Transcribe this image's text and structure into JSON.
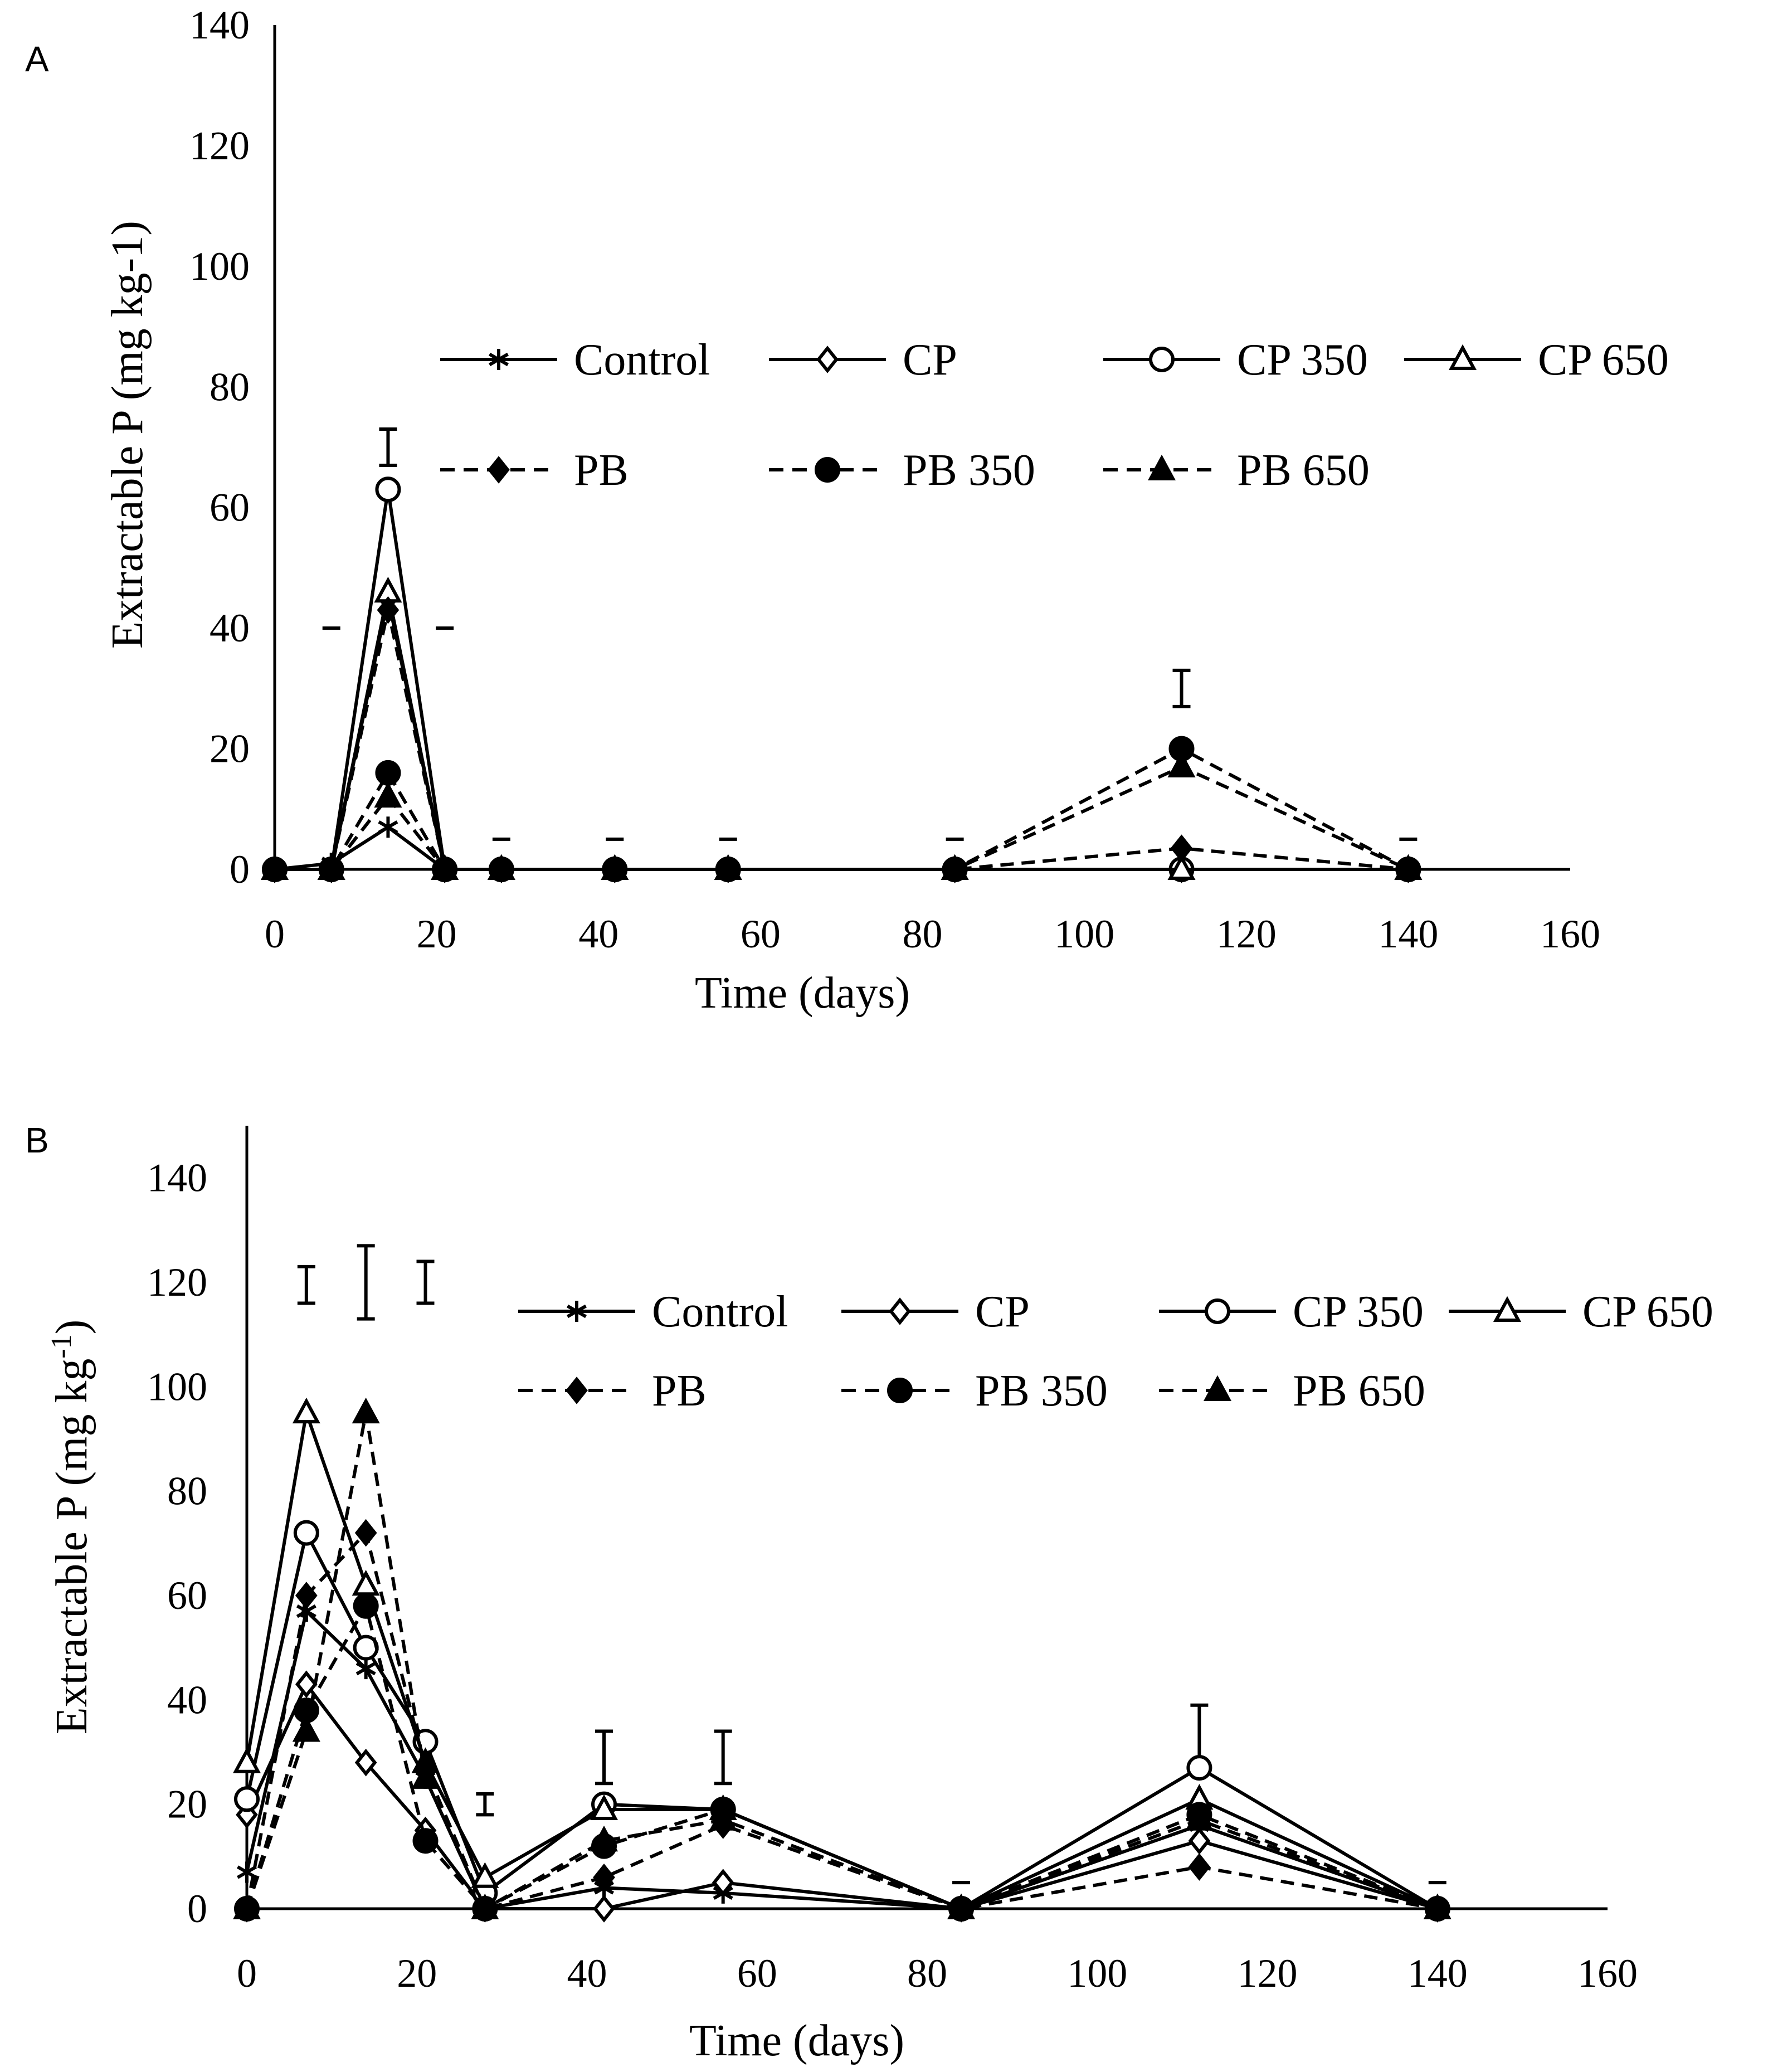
{
  "chart_data": [
    {
      "type": "line",
      "panel_label": "A",
      "xlabel": "Time (days)",
      "ylabel": "Extractable P (mg kg-1)",
      "ylabel_sup": "",
      "xlim": [
        0,
        160
      ],
      "ylim": [
        0,
        140
      ],
      "xticks": [
        "0",
        "20",
        "40",
        "60",
        "80",
        "100",
        "120",
        "140",
        "160"
      ],
      "yticks": [
        "0",
        "20",
        "40",
        "60",
        "80",
        "100",
        "120",
        "140"
      ],
      "x": [
        0,
        7,
        14,
        21,
        28,
        42,
        56,
        84,
        112,
        140
      ],
      "series": [
        {
          "name": "Control",
          "style": "solid",
          "marker": "star",
          "values": [
            0,
            1,
            7,
            0,
            0,
            0,
            0,
            0,
            0,
            0
          ]
        },
        {
          "name": "CP",
          "style": "solid",
          "marker": "diamond-open",
          "values": [
            0,
            0,
            45,
            0,
            0,
            0,
            0,
            0,
            0,
            0
          ]
        },
        {
          "name": "CP 350",
          "style": "solid",
          "marker": "circle-open",
          "values": [
            0,
            0,
            63,
            0,
            0,
            0,
            0,
            0,
            0,
            0
          ]
        },
        {
          "name": "CP 650",
          "style": "solid",
          "marker": "triangle-open",
          "values": [
            0,
            0,
            46,
            0,
            0,
            0,
            0,
            0,
            0,
            0
          ]
        },
        {
          "name": "PB",
          "style": "dashed",
          "marker": "diamond-filled",
          "values": [
            0,
            0,
            43,
            0,
            0,
            0,
            0,
            0,
            3.5,
            0
          ]
        },
        {
          "name": "PB 350",
          "style": "dashed",
          "marker": "circle-filled",
          "values": [
            0,
            0,
            16,
            0,
            0,
            0,
            0,
            0,
            20,
            0
          ]
        },
        {
          "name": "PB 650",
          "style": "dashed",
          "marker": "triangle-filled",
          "values": [
            0,
            0,
            12,
            0,
            0,
            0,
            0,
            0,
            17,
            0
          ]
        }
      ],
      "error_bars": [
        {
          "x": 14,
          "low": 67,
          "high": 73
        },
        {
          "x": 7,
          "low": 40,
          "high": 40
        },
        {
          "x": 21,
          "low": 40,
          "high": 40
        },
        {
          "x": 28,
          "low": 5,
          "high": 5
        },
        {
          "x": 42,
          "low": 5,
          "high": 5
        },
        {
          "x": 56,
          "low": 5,
          "high": 5
        },
        {
          "x": 84,
          "low": 5,
          "high": 5
        },
        {
          "x": 112,
          "low": 27,
          "high": 33
        },
        {
          "x": 140,
          "low": 5,
          "high": 5
        }
      ]
    },
    {
      "type": "line",
      "panel_label": "B",
      "xlabel": "Time (days)",
      "ylabel": "Extractable P (mg kg",
      "ylabel_sup": "-1",
      "ylabel_close": ")",
      "xlim": [
        0,
        160
      ],
      "ylim": [
        0,
        150
      ],
      "xticks": [
        "0",
        "20",
        "40",
        "60",
        "80",
        "100",
        "120",
        "140",
        "160"
      ],
      "yticks": [
        "0",
        "20",
        "40",
        "60",
        "80",
        "100",
        "120",
        "140"
      ],
      "x": [
        0,
        7,
        14,
        21,
        28,
        42,
        56,
        84,
        112,
        140
      ],
      "series": [
        {
          "name": "Control",
          "style": "solid",
          "marker": "star",
          "values": [
            7,
            57,
            46,
            25,
            0,
            4,
            3,
            0,
            16,
            0
          ]
        },
        {
          "name": "CP",
          "style": "solid",
          "marker": "diamond-open",
          "values": [
            18,
            43,
            28,
            15,
            0,
            0,
            5,
            0,
            13,
            0
          ]
        },
        {
          "name": "CP 350",
          "style": "solid",
          "marker": "circle-open",
          "values": [
            21,
            72,
            50,
            32,
            3,
            20,
            19,
            0,
            27,
            0
          ]
        },
        {
          "name": "CP 650",
          "style": "solid",
          "marker": "triangle-open",
          "values": [
            28,
            95,
            62,
            28,
            6,
            19,
            19,
            0,
            21,
            0
          ]
        },
        {
          "name": "PB",
          "style": "dashed",
          "marker": "diamond-filled",
          "values": [
            0,
            60,
            72,
            27,
            0,
            6,
            16,
            0,
            8,
            0
          ]
        },
        {
          "name": "PB 350",
          "style": "dashed",
          "marker": "circle-filled",
          "values": [
            0,
            38,
            58,
            13,
            0,
            12,
            19,
            0,
            18,
            0
          ]
        },
        {
          "name": "PB 650",
          "style": "dashed",
          "marker": "triangle-filled",
          "values": [
            0,
            34,
            95,
            25,
            0,
            13,
            17,
            0,
            17,
            0
          ]
        }
      ],
      "error_bars": [
        {
          "x": 7,
          "low": 116,
          "high": 123
        },
        {
          "x": 14,
          "low": 113,
          "high": 127
        },
        {
          "x": 21,
          "low": 116,
          "high": 124
        },
        {
          "x": 28,
          "low": 18,
          "high": 22
        },
        {
          "x": 42,
          "low": 24,
          "high": 34
        },
        {
          "x": 56,
          "low": 24,
          "high": 34
        },
        {
          "x": 84,
          "low": 5,
          "high": 5
        },
        {
          "x": 112,
          "low": 28,
          "high": 39
        },
        {
          "x": 140,
          "low": 5,
          "high": 5
        }
      ]
    }
  ]
}
